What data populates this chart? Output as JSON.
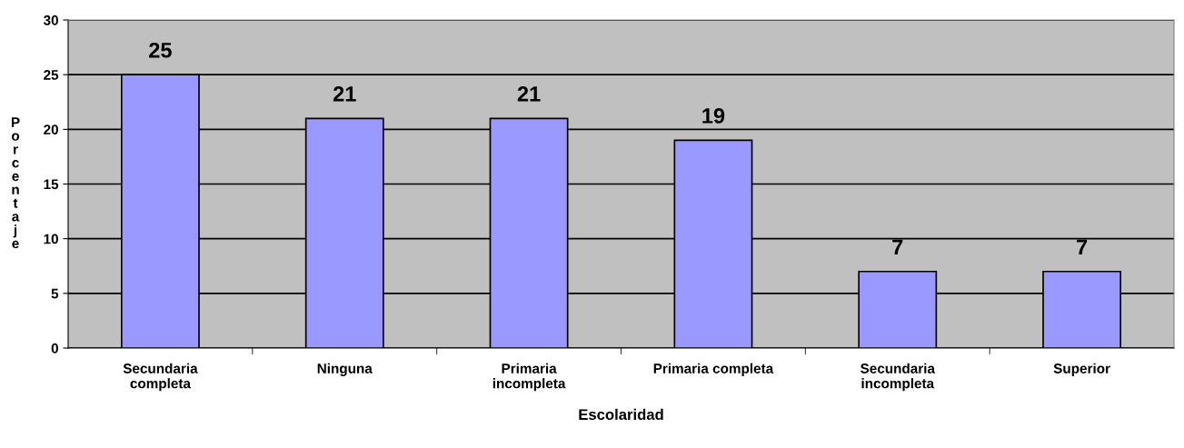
{
  "chart_data": {
    "type": "bar",
    "xlabel": "Escolaridad",
    "ylabel": "Porcentaje",
    "categories": [
      "Secundaria\ncompleta",
      "Ninguna",
      "Primaria\nincompleta",
      "Primaria completa",
      "Secundaria\nincompleta",
      "Superior"
    ],
    "values": [
      25,
      21,
      21,
      19,
      7,
      7
    ],
    "color": "#9999ff",
    "ylim": [
      0,
      30
    ],
    "yticks": [
      0,
      5,
      10,
      15,
      20,
      25,
      30
    ],
    "grid": "y",
    "data_labels": true,
    "legend": false
  }
}
